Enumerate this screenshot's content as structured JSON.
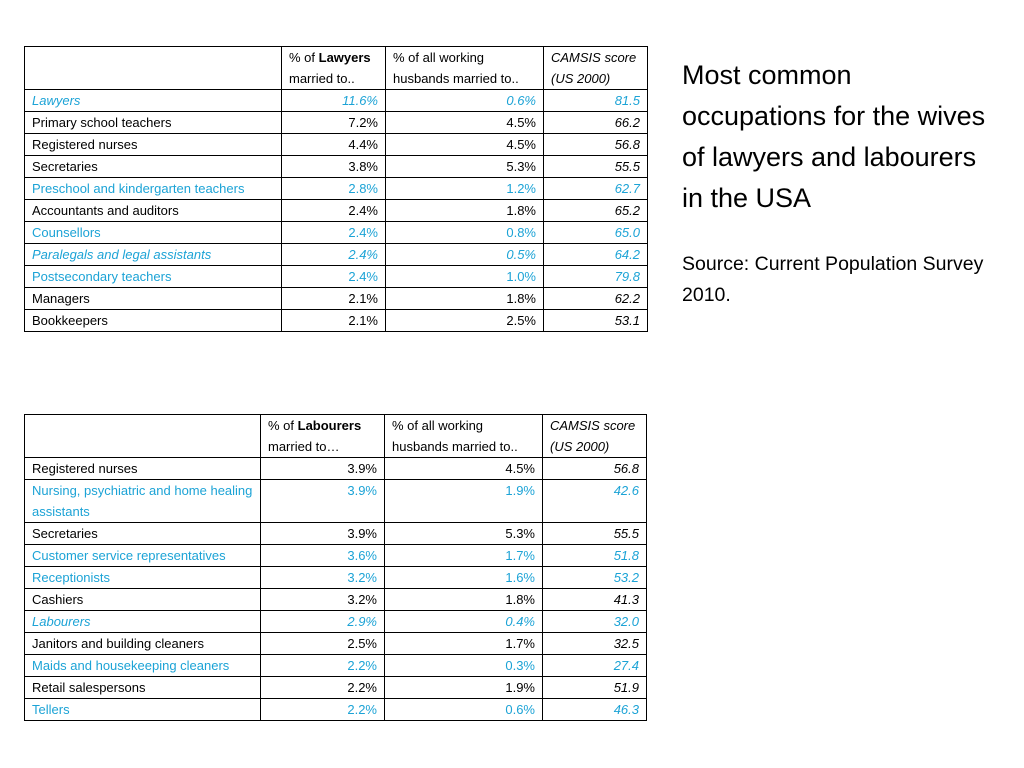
{
  "title": "Most common occupations for the wives of lawyers and labourers in the USA",
  "source": "Source: Current Population Survey 2010.",
  "colors": {
    "highlight_text": "#1ca3d6",
    "text": "#000000",
    "border": "#000000"
  },
  "lawyers_table": {
    "header": {
      "col1": "",
      "col2_prefix": "% of ",
      "col2_bold": "Lawyers",
      "col2_suffix": "married to..",
      "col3_line1": "% of all working",
      "col3_line2": "husbands married to..",
      "col4_line1": "CAMSIS score",
      "col4_line2": "(US 2000)"
    },
    "rows": [
      {
        "occupation": "Lawyers",
        "pct_of_group": "11.6%",
        "pct_all": "0.6%",
        "camsis": "81.5",
        "highlight": true,
        "italic": true
      },
      {
        "occupation": "Primary school teachers",
        "pct_of_group": "7.2%",
        "pct_all": "4.5%",
        "camsis": "66.2",
        "highlight": false,
        "italic": false
      },
      {
        "occupation": "Registered nurses",
        "pct_of_group": "4.4%",
        "pct_all": "4.5%",
        "camsis": "56.8",
        "highlight": false,
        "italic": false
      },
      {
        "occupation": "Secretaries",
        "pct_of_group": "3.8%",
        "pct_all": "5.3%",
        "camsis": "55.5",
        "highlight": false,
        "italic": false
      },
      {
        "occupation": "Preschool and kindergarten teachers",
        "pct_of_group": "2.8%",
        "pct_all": "1.2%",
        "camsis": "62.7",
        "highlight": true,
        "italic": false
      },
      {
        "occupation": "Accountants and auditors",
        "pct_of_group": "2.4%",
        "pct_all": "1.8%",
        "camsis": "65.2",
        "highlight": false,
        "italic": false
      },
      {
        "occupation": "Counsellors",
        "pct_of_group": "2.4%",
        "pct_all": "0.8%",
        "camsis": "65.0",
        "highlight": true,
        "italic": false
      },
      {
        "occupation": "Paralegals and legal assistants",
        "pct_of_group": "2.4%",
        "pct_all": "0.5%",
        "camsis": "64.2",
        "highlight": true,
        "italic": true
      },
      {
        "occupation": "Postsecondary teachers",
        "pct_of_group": "2.4%",
        "pct_all": "1.0%",
        "camsis": "79.8",
        "highlight": true,
        "italic": false
      },
      {
        "occupation": "Managers",
        "pct_of_group": "2.1%",
        "pct_all": "1.8%",
        "camsis": "62.2",
        "highlight": false,
        "italic": false
      },
      {
        "occupation": "Bookkeepers",
        "pct_of_group": "2.1%",
        "pct_all": "2.5%",
        "camsis": "53.1",
        "highlight": false,
        "italic": false
      }
    ]
  },
  "labourers_table": {
    "header": {
      "col1": "",
      "col2_prefix": "% of ",
      "col2_bold": "Labourers",
      "col2_suffix": "married to…",
      "col3_line1": "% of all working",
      "col3_line2": "husbands married to..",
      "col4_line1": "CAMSIS score",
      "col4_line2": "(US 2000)"
    },
    "rows": [
      {
        "occupation": "Registered nurses",
        "pct_of_group": "3.9%",
        "pct_all": "4.5%",
        "camsis": "56.8",
        "highlight": false,
        "italic": false
      },
      {
        "occupation": "Nursing, psychiatric and home healing assistants",
        "pct_of_group": "3.9%",
        "pct_all": "1.9%",
        "camsis": "42.6",
        "highlight": true,
        "italic": false
      },
      {
        "occupation": "Secretaries",
        "pct_of_group": "3.9%",
        "pct_all": "5.3%",
        "camsis": "55.5",
        "highlight": false,
        "italic": false
      },
      {
        "occupation": "Customer service representatives",
        "pct_of_group": "3.6%",
        "pct_all": "1.7%",
        "camsis": "51.8",
        "highlight": true,
        "italic": false
      },
      {
        "occupation": "Receptionists",
        "pct_of_group": "3.2%",
        "pct_all": "1.6%",
        "camsis": "53.2",
        "highlight": true,
        "italic": false
      },
      {
        "occupation": "Cashiers",
        "pct_of_group": "3.2%",
        "pct_all": "1.8%",
        "camsis": "41.3",
        "highlight": false,
        "italic": false
      },
      {
        "occupation": "Labourers",
        "pct_of_group": "2.9%",
        "pct_all": "0.4%",
        "camsis": "32.0",
        "highlight": true,
        "italic": true
      },
      {
        "occupation": "Janitors and building cleaners",
        "pct_of_group": "2.5%",
        "pct_all": "1.7%",
        "camsis": "32.5",
        "highlight": false,
        "italic": false
      },
      {
        "occupation": "Maids and housekeeping cleaners",
        "pct_of_group": "2.2%",
        "pct_all": "0.3%",
        "camsis": "27.4",
        "highlight": true,
        "italic": false
      },
      {
        "occupation": "Retail salespersons",
        "pct_of_group": "2.2%",
        "pct_all": "1.9%",
        "camsis": "51.9",
        "highlight": false,
        "italic": false
      },
      {
        "occupation": "Tellers",
        "pct_of_group": "2.2%",
        "pct_all": "0.6%",
        "camsis": "46.3",
        "highlight": true,
        "italic": false
      }
    ]
  }
}
